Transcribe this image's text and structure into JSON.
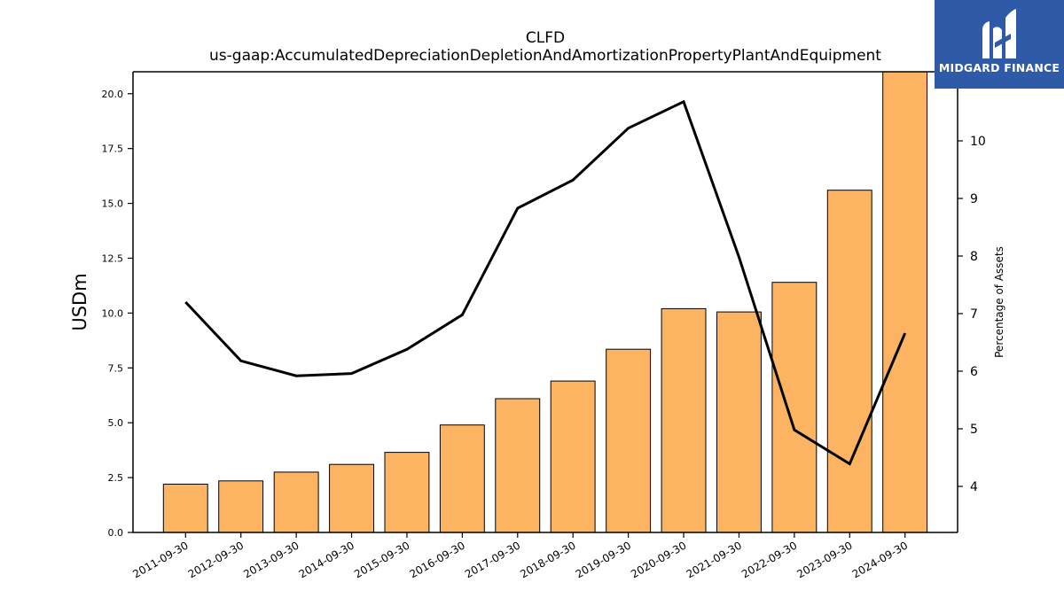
{
  "chart_data": {
    "type": "bar+line",
    "title": "CLFD",
    "subtitle": "us-gaap:AccumulatedDepreciationDepletionAndAmortizationPropertyPlantAndEquipment",
    "categories": [
      "2011-09-30",
      "2012-09-30",
      "2013-09-30",
      "2014-09-30",
      "2015-09-30",
      "2016-09-30",
      "2017-09-30",
      "2018-09-30",
      "2019-09-30",
      "2020-09-30",
      "2021-09-30",
      "2022-09-30",
      "2023-09-30",
      "2024-09-30"
    ],
    "series": [
      {
        "type": "bar",
        "axis": "left",
        "color": "#fdb462",
        "values": [
          2.2,
          2.35,
          2.75,
          3.1,
          3.65,
          4.9,
          6.1,
          6.9,
          8.35,
          10.2,
          10.05,
          11.4,
          15.6,
          21.0
        ]
      },
      {
        "type": "line",
        "axis": "right",
        "color": "#000000",
        "values": [
          7.2,
          6.18,
          5.92,
          5.96,
          6.38,
          6.98,
          8.83,
          9.32,
          10.22,
          10.68,
          7.98,
          4.98,
          4.39,
          6.66
        ]
      }
    ],
    "ylabel": "USDm",
    "ylabel_right": "Percentage of Assets",
    "ylim": [
      0,
      21
    ],
    "ylim_right": [
      3.2,
      11.2
    ],
    "yticks": [
      "0.0",
      "2.5",
      "5.0",
      "7.5",
      "10.0",
      "12.5",
      "15.0",
      "17.5",
      "20.0"
    ],
    "yticks_right": [
      "4",
      "5",
      "6",
      "7",
      "8",
      "9",
      "10"
    ],
    "grid": false,
    "legend": "none"
  },
  "logo": {
    "text": "MIDGARD FINANCE",
    "color": "#2f5aa8"
  }
}
